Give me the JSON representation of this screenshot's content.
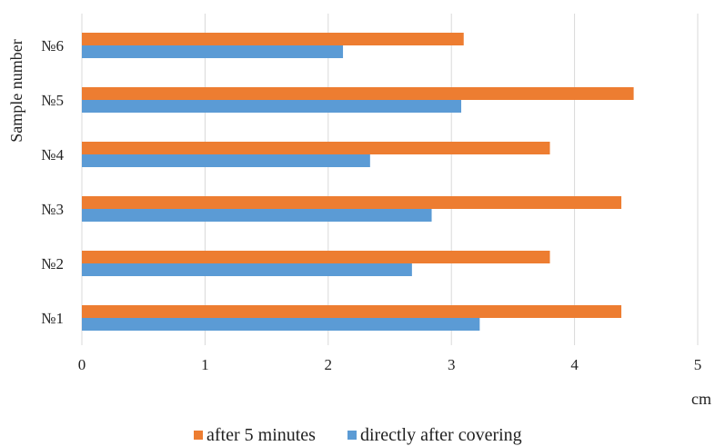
{
  "chart_data": {
    "type": "bar",
    "orientation": "horizontal",
    "categories": [
      "№1",
      "№2",
      "№3",
      "№4",
      "№5",
      "№6"
    ],
    "series": [
      {
        "name": "directly after covering",
        "color": "#5b9bd5",
        "values": [
          3.23,
          2.68,
          2.84,
          2.34,
          3.08,
          2.12
        ]
      },
      {
        "name": "after 5 minutes",
        "color": "#ed7d31",
        "values": [
          4.38,
          3.8,
          4.38,
          3.8,
          4.48,
          3.1
        ]
      }
    ],
    "xlabel": "cm",
    "ylabel": "Sample number",
    "xlim": [
      0,
      5
    ],
    "xticks": [
      "0",
      "1",
      "2",
      "3",
      "4",
      "5"
    ],
    "grid": "vertical",
    "legend": {
      "position": "bottom",
      "entries": [
        "after 5 minutes",
        "directly after covering"
      ]
    }
  }
}
